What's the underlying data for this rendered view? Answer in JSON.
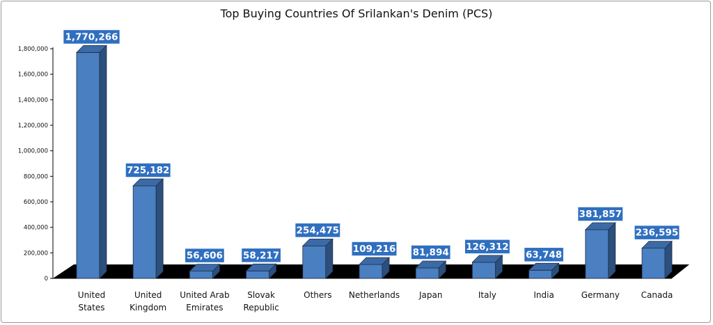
{
  "chart_data": {
    "type": "bar",
    "title": "Top Buying Countries Of Srilankan's Denim (PCS)",
    "categories": [
      [
        "United",
        "States"
      ],
      [
        "United",
        "Kingdom"
      ],
      [
        "United Arab",
        "Emirates"
      ],
      [
        "Slovak",
        "Republic"
      ],
      [
        "Others"
      ],
      [
        "Netherlands"
      ],
      [
        "Japan"
      ],
      [
        "Italy"
      ],
      [
        "India"
      ],
      [
        "Germany"
      ],
      [
        "Canada"
      ]
    ],
    "values": [
      1770266,
      725182,
      56606,
      58217,
      254475,
      109216,
      81894,
      126312,
      63748,
      381857,
      236595
    ],
    "data_labels": [
      "1,770,266",
      "725,182",
      "56,606",
      "58,217",
      "254,475",
      "109,216",
      "81,894",
      "126,312",
      "63,748",
      "381,857",
      "236,595"
    ],
    "y_ticks": [
      "0",
      "200,000",
      "400,000",
      "600,000",
      "800,000",
      "1,000,000",
      "1,200,000",
      "1,400,000",
      "1,600,000",
      "1,800,000"
    ],
    "ylim": [
      0,
      1800000
    ],
    "style": "3d-column",
    "grid": false,
    "legend": "none",
    "colors": {
      "bar_front": "#4a7fc1",
      "bar_side": "#2c4f7d",
      "bar_top": "#3b6aa6",
      "label_box": "#2f6fc0",
      "label_border": "#ffffff",
      "floor": "#000000"
    }
  }
}
